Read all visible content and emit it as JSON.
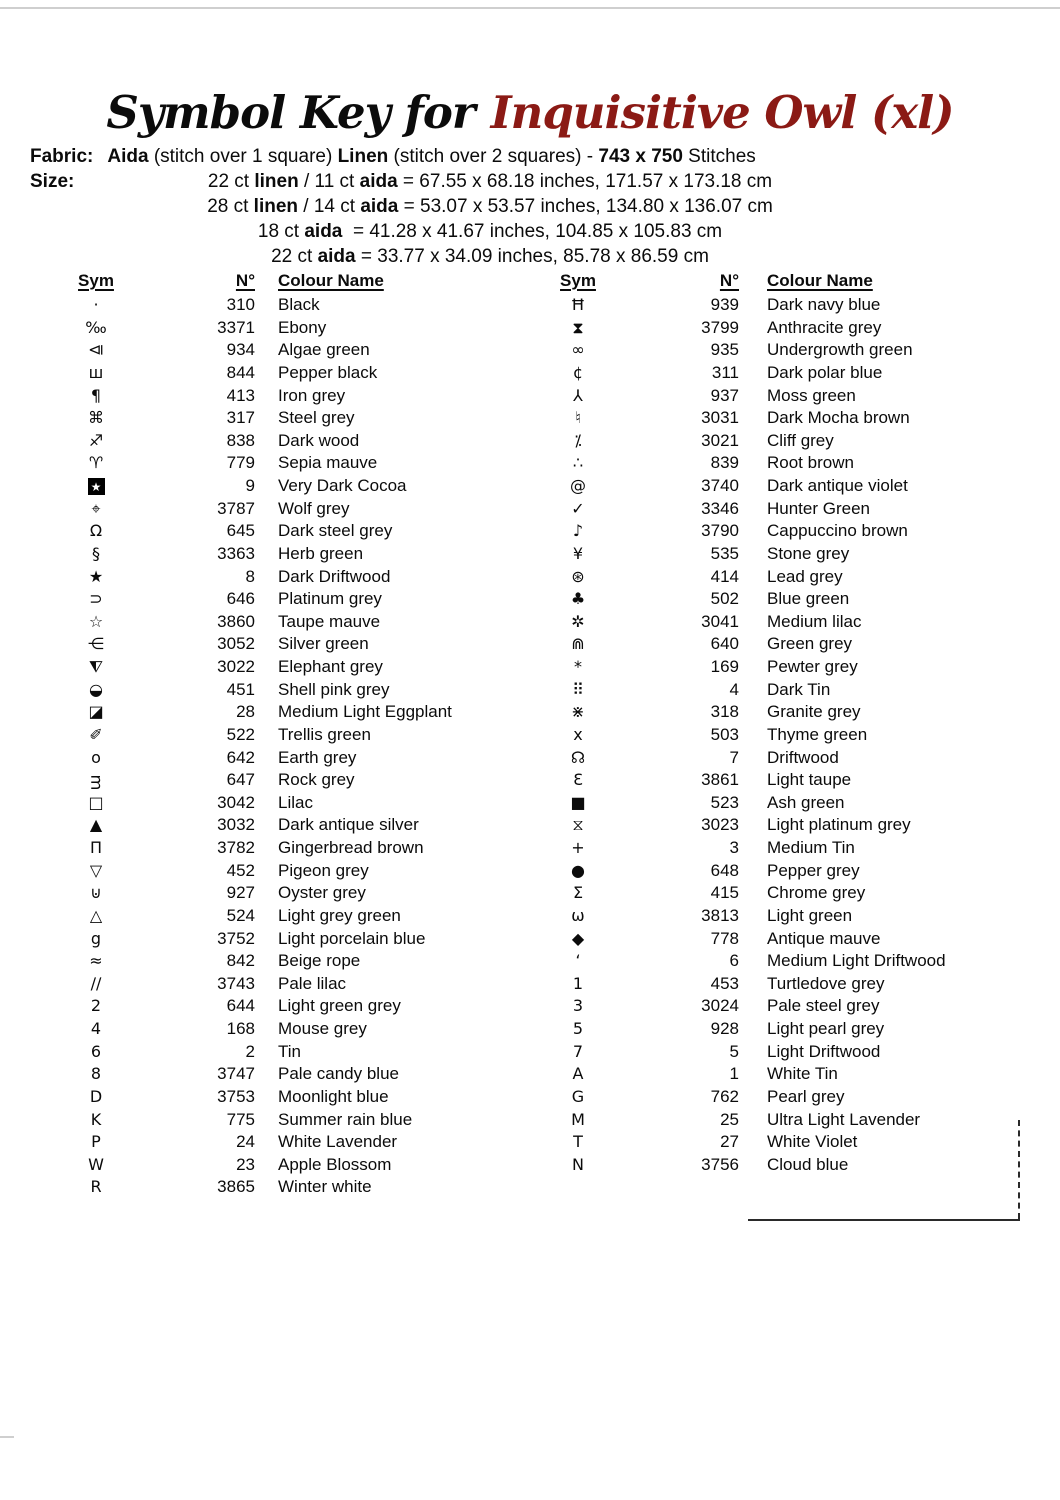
{
  "title": {
    "prefix": "Symbol Key for",
    "name": "Inquisitive Owl (xl)",
    "accent_color": "#8B1A15"
  },
  "fabric": {
    "label": "Fabric:",
    "segments": [
      {
        "t": "Aida",
        "b": true
      },
      {
        "t": "  (stitch over 1 square)   ",
        "b": false
      },
      {
        "t": "Linen",
        "b": true
      },
      {
        "t": "  (stitch over 2 squares) -  ",
        "b": false
      },
      {
        "t": "743 x 750",
        "b": true
      },
      {
        "t": " Stitches",
        "b": false
      }
    ]
  },
  "size": {
    "label": "Size:",
    "lines": [
      [
        {
          "t": "22 ct ",
          "b": false
        },
        {
          "t": "linen",
          "b": true
        },
        {
          "t": " / 11 ct ",
          "b": false
        },
        {
          "t": "aida",
          "b": true
        },
        {
          "t": " = 67.55 x 68.18 inches, 171.57 x 173.18 cm",
          "b": false
        }
      ],
      [
        {
          "t": "28 ct ",
          "b": false
        },
        {
          "t": "linen",
          "b": true
        },
        {
          "t": " / 14 ct ",
          "b": false
        },
        {
          "t": "aida",
          "b": true
        },
        {
          "t": " = 53.07 x 53.57 inches, 134.80 x 136.07 cm",
          "b": false
        }
      ],
      [
        {
          "t": "18 ct ",
          "b": false
        },
        {
          "t": "aida",
          "b": true
        },
        {
          "t": "  = 41.28 x 41.67 inches, 104.85 x 105.83 cm",
          "b": false
        }
      ],
      [
        {
          "t": "22 ct ",
          "b": false
        },
        {
          "t": "aida",
          "b": true
        },
        {
          "t": " = 33.77 x 34.09 inches, 85.78 x 86.59 cm",
          "b": false
        }
      ]
    ]
  },
  "table_headers": {
    "sym": "Sym",
    "num": "N°",
    "name": "Colour Name"
  },
  "left_rows": [
    {
      "sym": "·",
      "num": "310",
      "name": "Black"
    },
    {
      "sym": "‰",
      "num": "3371",
      "name": "Ebony"
    },
    {
      "sym": "⧏",
      "num": "934",
      "name": "Algae green"
    },
    {
      "sym": "ш",
      "num": "844",
      "name": "Pepper black"
    },
    {
      "sym": "¶",
      "num": "413",
      "name": "Iron grey"
    },
    {
      "sym": "⌘",
      "num": "317",
      "name": "Steel grey"
    },
    {
      "sym": "♐",
      "num": "838",
      "name": "Dark wood"
    },
    {
      "sym": "♈",
      "num": "779",
      "name": "Sepia mauve"
    },
    {
      "sym": "★",
      "inv": true,
      "num": "9",
      "name": "Very Dark Cocoa"
    },
    {
      "sym": "⌖",
      "num": "3787",
      "name": "Wolf grey"
    },
    {
      "sym": "Ω",
      "num": "645",
      "name": "Dark steel grey"
    },
    {
      "sym": "§",
      "num": "3363",
      "name": "Herb green"
    },
    {
      "sym": "★",
      "num": "8",
      "name": "Dark Driftwood"
    },
    {
      "sym": "⊃",
      "num": "646",
      "name": "Platinum grey"
    },
    {
      "sym": "☆",
      "num": "3860",
      "name": "Taupe mauve"
    },
    {
      "sym": "⋲",
      "num": "3052",
      "name": "Silver green"
    },
    {
      "sym": "⧨",
      "num": "3022",
      "name": "Elephant grey"
    },
    {
      "sym": "◒",
      "num": "451",
      "name": "Shell pink grey"
    },
    {
      "sym": "◪",
      "num": "28",
      "name": "Medium Light Eggplant"
    },
    {
      "sym": "✐",
      "num": "522",
      "name": "Trellis green"
    },
    {
      "sym": "o",
      "num": "642",
      "name": "Earth grey"
    },
    {
      "sym": "ᴟ",
      "num": "647",
      "name": "Rock grey"
    },
    {
      "sym": "□",
      "num": "3042",
      "name": "Lilac"
    },
    {
      "sym": "▲",
      "num": "3032",
      "name": "Dark antique silver"
    },
    {
      "sym": "Π",
      "num": "3782",
      "name": "Gingerbread brown"
    },
    {
      "sym": "▽",
      "num": "452",
      "name": "Pigeon grey"
    },
    {
      "sym": "⊍",
      "num": "927",
      "name": "Oyster grey"
    },
    {
      "sym": "△",
      "num": "524",
      "name": "Light grey green"
    },
    {
      "sym": "g",
      "num": "3752",
      "name": "Light porcelain blue"
    },
    {
      "sym": "≈",
      "num": "842",
      "name": "Beige rope"
    },
    {
      "sym": "∕∕",
      "num": "3743",
      "name": "Pale lilac"
    },
    {
      "sym": "2",
      "num": "644",
      "name": "Light green grey"
    },
    {
      "sym": "4",
      "num": "168",
      "name": "Mouse grey"
    },
    {
      "sym": "6",
      "num": "2",
      "name": "Tin"
    },
    {
      "sym": "8",
      "num": "3747",
      "name": "Pale candy blue"
    },
    {
      "sym": "D",
      "num": "3753",
      "name": "Moonlight blue"
    },
    {
      "sym": "K",
      "num": "775",
      "name": "Summer rain blue"
    },
    {
      "sym": "P",
      "num": "24",
      "name": "White Lavender"
    },
    {
      "sym": "W",
      "num": "23",
      "name": "Apple Blossom"
    },
    {
      "sym": "R",
      "num": "3865",
      "name": "Winter white"
    }
  ],
  "right_rows": [
    {
      "sym": "Ħ",
      "num": "939",
      "name": "Dark navy blue"
    },
    {
      "sym": "⧗",
      "num": "3799",
      "name": "Anthracite grey"
    },
    {
      "sym": "∞",
      "num": "935",
      "name": "Undergrowth green"
    },
    {
      "sym": "¢",
      "num": "311",
      "name": "Dark polar blue"
    },
    {
      "sym": "⅄",
      "num": "937",
      "name": "Moss green"
    },
    {
      "sym": "♮",
      "num": "3031",
      "name": "Dark Mocha brown"
    },
    {
      "sym": "⁒",
      "num": "3021",
      "name": "Cliff grey"
    },
    {
      "sym": "∴",
      "num": "839",
      "name": "Root brown"
    },
    {
      "sym": "@",
      "num": "3740",
      "name": "Dark antique violet"
    },
    {
      "sym": "✓",
      "num": "3346",
      "name": "Hunter Green"
    },
    {
      "sym": "♪",
      "num": "3790",
      "name": "Cappuccino brown"
    },
    {
      "sym": "¥",
      "num": "535",
      "name": "Stone grey"
    },
    {
      "sym": "⊛",
      "num": "414",
      "name": "Lead grey"
    },
    {
      "sym": "♣",
      "num": "502",
      "name": "Blue green"
    },
    {
      "sym": "✲",
      "num": "3041",
      "name": "Medium lilac"
    },
    {
      "sym": "⋒",
      "num": "640",
      "name": "Green grey"
    },
    {
      "sym": "*",
      "num": "169",
      "name": "Pewter grey"
    },
    {
      "sym": "⠿",
      "num": "4",
      "name": "Dark Tin"
    },
    {
      "sym": "⋇",
      "num": "318",
      "name": "Granite grey"
    },
    {
      "sym": "x",
      "num": "503",
      "name": "Thyme green"
    },
    {
      "sym": "☊",
      "num": "7",
      "name": "Driftwood"
    },
    {
      "sym": "Ɛ",
      "num": "3861",
      "name": "Light taupe"
    },
    {
      "sym": "■",
      "num": "523",
      "name": "Ash green"
    },
    {
      "sym": "⧖",
      "num": "3023",
      "name": "Light platinum grey"
    },
    {
      "sym": "+",
      "num": "3",
      "name": "Medium Tin"
    },
    {
      "sym": "●",
      "num": "648",
      "name": "Pepper grey"
    },
    {
      "sym": "Σ",
      "num": "415",
      "name": "Chrome grey"
    },
    {
      "sym": "ω",
      "num": "3813",
      "name": "Light green"
    },
    {
      "sym": "◆",
      "num": "778",
      "name": "Antique mauve"
    },
    {
      "sym": "‘",
      "num": "6",
      "name": "Medium Light Driftwood"
    },
    {
      "sym": "1",
      "num": "453",
      "name": "Turtledove grey"
    },
    {
      "sym": "3",
      "num": "3024",
      "name": "Pale steel grey"
    },
    {
      "sym": "5",
      "num": "928",
      "name": "Light pearl grey"
    },
    {
      "sym": "7",
      "num": "5",
      "name": "Light Driftwood"
    },
    {
      "sym": "A",
      "num": "1",
      "name": "White Tin"
    },
    {
      "sym": "G",
      "num": "762",
      "name": "Pearl grey"
    },
    {
      "sym": "M",
      "num": "25",
      "name": "Ultra Light Lavender"
    },
    {
      "sym": "T",
      "num": "27",
      "name": "White Violet"
    },
    {
      "sym": "N",
      "num": "3756",
      "name": "Cloud blue"
    }
  ]
}
